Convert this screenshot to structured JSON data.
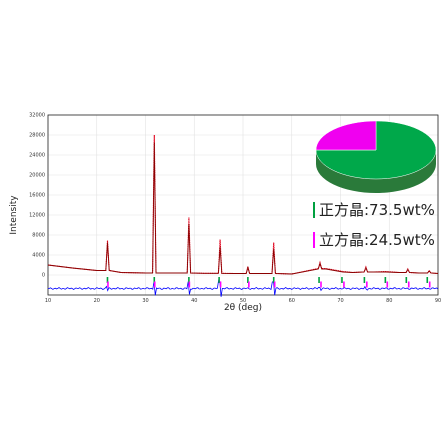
{
  "chart_data": [
    {
      "type": "line",
      "title": "",
      "xlabel": "2θ (deg)",
      "ylabel": "Intensity",
      "xlim": [
        10,
        90
      ],
      "ylim": [
        -4000,
        32000
      ],
      "x_ticks": [
        10,
        20,
        30,
        40,
        50,
        60,
        70,
        80,
        90
      ],
      "y_ticks": [
        0,
        4000,
        8000,
        12000,
        16000,
        20000,
        24000,
        28000,
        32000
      ],
      "grid": true,
      "series": [
        {
          "role": "observed",
          "color": "#e0001b",
          "x": [
            10,
            15,
            20,
            22.2,
            25,
            30,
            31.8,
            35,
            38.9,
            42,
            45.3,
            48,
            51,
            54,
            56.3,
            60,
            65.8,
            67,
            70.5,
            72.5,
            75.2,
            77,
            79.3,
            82,
            83.8,
            86,
            88.2,
            90
          ],
          "y": [
            2000,
            1400,
            900,
            6900,
            500,
            400,
            28000,
            400,
            11500,
            350,
            7100,
            300,
            1700,
            300,
            6500,
            200,
            2500,
            1300,
            700,
            500,
            1600,
            600,
            700,
            500,
            1200,
            400,
            900,
            300
          ]
        },
        {
          "role": "calculated",
          "color": "#8b0000",
          "x": [
            10,
            15,
            20,
            22.2,
            25,
            30,
            31.8,
            35,
            38.9,
            42,
            45.3,
            48,
            51,
            54,
            56.3,
            60,
            65.8,
            67,
            70.5,
            72.5,
            75.2,
            77,
            79.3,
            82,
            83.8,
            86,
            88.2,
            90
          ],
          "y": [
            2000,
            1400,
            900,
            6500,
            500,
            400,
            26500,
            400,
            10200,
            350,
            5600,
            300,
            1500,
            300,
            5200,
            200,
            2300,
            1200,
            600,
            500,
            1400,
            600,
            600,
            500,
            1100,
            400,
            800,
            300
          ]
        },
        {
          "role": "difference",
          "color": "#0000ff",
          "offset": -2700,
          "x": [
            10,
            22.2,
            31.8,
            38.9,
            45.3,
            56.3,
            65.8,
            75.2,
            90
          ],
          "y": [
            0,
            400,
            1500,
            1300,
            1500,
            1300,
            200,
            200,
            0
          ]
        }
      ],
      "reflections": [
        {
          "phase": "正方晶",
          "color": "#00a040",
          "positions": [
            22.2,
            31.8,
            38.9,
            45.1,
            51.0,
            56.3,
            65.6,
            70.3,
            74.9,
            79.2,
            83.5,
            87.8
          ]
        },
        {
          "phase": "立方晶",
          "color": "#ff00ff",
          "positions": [
            22.3,
            31.9,
            39.0,
            45.4,
            51.2,
            56.5,
            66.0,
            70.7,
            75.4,
            79.6,
            84.0,
            88.3
          ]
        }
      ]
    },
    {
      "type": "pie",
      "slices": [
        {
          "label": "正方晶",
          "value": 73.5,
          "color": "#00b050"
        },
        {
          "label": "立方晶",
          "value": 24.5,
          "color": "#ff00ff"
        }
      ]
    }
  ],
  "legend": {
    "items": [
      {
        "text": "正方晶:73.5wt%",
        "color": "#00a040"
      },
      {
        "text": "立方晶:24.5wt%",
        "color": "#ff00ff"
      }
    ]
  }
}
